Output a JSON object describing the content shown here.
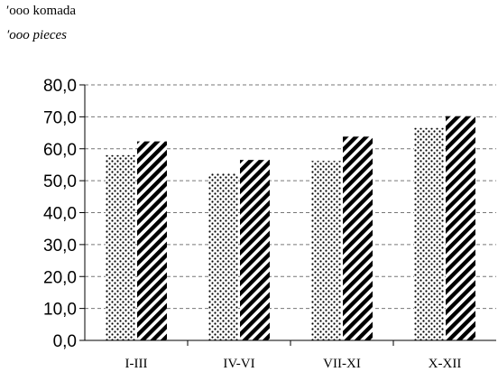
{
  "units": {
    "line1": "′ooo komada",
    "line2": "′ooo pieces"
  },
  "chart_data": {
    "type": "bar",
    "title": "",
    "xlabel": "",
    "ylabel": "",
    "categories": [
      "I-III",
      "IV-VI",
      "VII-XI",
      "X-XII"
    ],
    "series": [
      {
        "pattern": "dots",
        "values": [
          58.0,
          52.3,
          56.2,
          66.5
        ]
      },
      {
        "pattern": "diagonal-stripes",
        "values": [
          62.3,
          56.5,
          63.8,
          70.2
        ]
      }
    ],
    "ylim": [
      0,
      80
    ],
    "yticks": [
      "0,0",
      "10,0",
      "20,0",
      "30,0",
      "40,0",
      "50,0",
      "60,0",
      "70,0",
      "80,0"
    ],
    "grid": true,
    "legend": false
  }
}
